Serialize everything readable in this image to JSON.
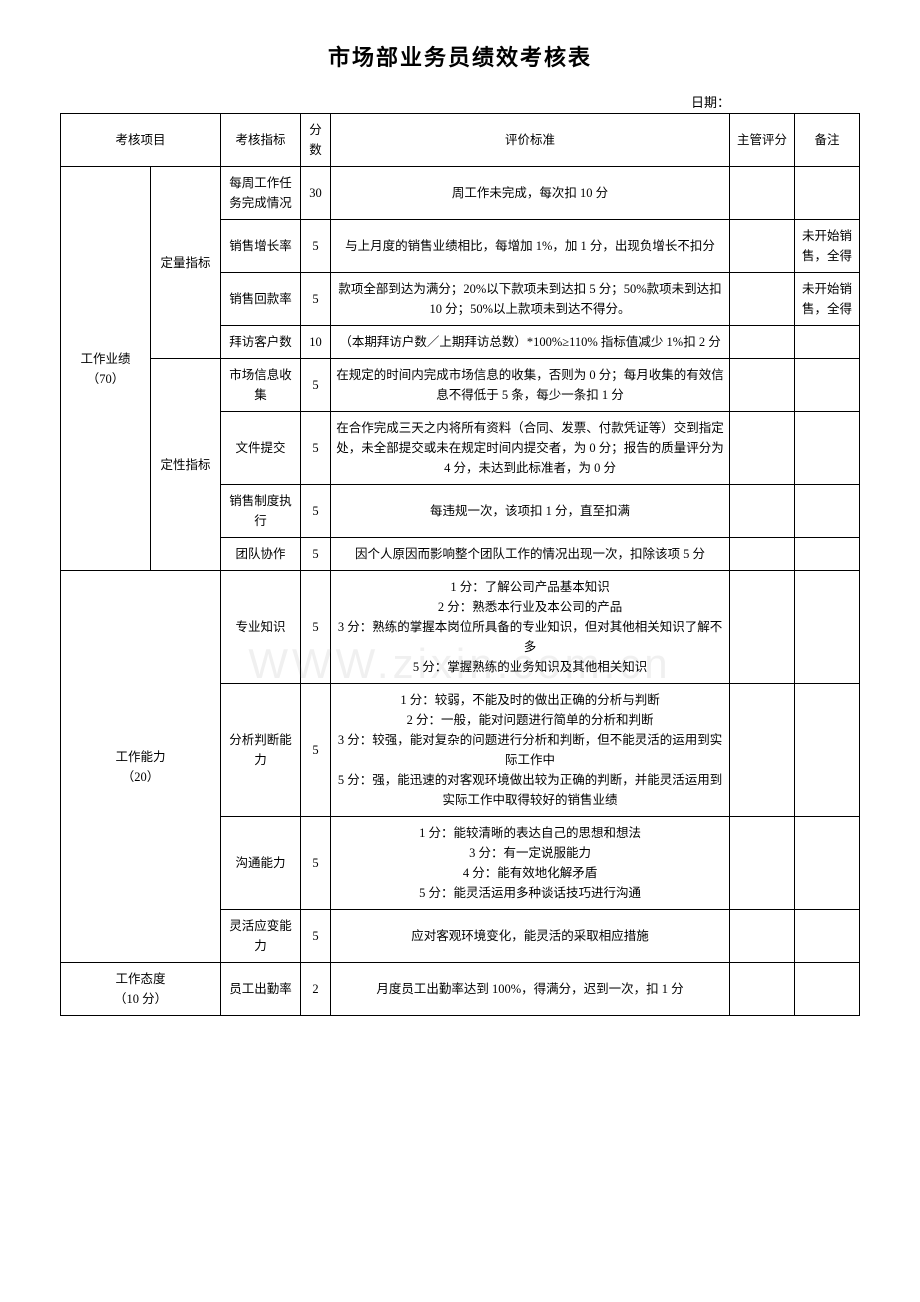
{
  "title": "市场部业务员绩效考核表",
  "date_label": "日期：",
  "headers": {
    "project": "考核项目",
    "indicator": "考核指标",
    "score": "分数",
    "criteria": "评价标准",
    "supervisor": "主管评分",
    "remark": "备注"
  },
  "sections": {
    "performance": {
      "label": "工作业绩",
      "weight": "（70）"
    },
    "ability": {
      "label": "工作能力",
      "weight": "（20）"
    },
    "attitude": {
      "label": "工作态度",
      "weight": "（10 分）"
    }
  },
  "subcats": {
    "quantitative": "定量指标",
    "qualitative": "定性指标"
  },
  "rows": [
    {
      "indicator": "每周工作任务完成情况",
      "score": "30",
      "criteria": "周工作未完成，每次扣 10 分",
      "remark": ""
    },
    {
      "indicator": "销售增长率",
      "score": "5",
      "criteria": "与上月度的销售业绩相比，每增加 1%，加 1 分，出现负增长不扣分",
      "remark": "未开始销售，全得"
    },
    {
      "indicator": "销售回款率",
      "score": "5",
      "criteria": "款项全部到达为满分；20%以下款项未到达扣 5 分；50%款项未到达扣 10 分；50%以上款项未到达不得分。",
      "remark": "未开始销售，全得"
    },
    {
      "indicator": "拜访客户数",
      "score": "10",
      "criteria": "（本期拜访户数／上期拜访总数）*100%≥110% 指标值减少 1%扣 2 分",
      "remark": ""
    },
    {
      "indicator": "市场信息收集",
      "score": "5",
      "criteria": "在规定的时间内完成市场信息的收集，否则为 0 分；每月收集的有效信息不得低于 5 条，每少一条扣 1 分",
      "remark": ""
    },
    {
      "indicator": "文件提交",
      "score": "5",
      "criteria": "在合作完成三天之内将所有资料（合同、发票、付款凭证等）交到指定处，未全部提交或未在规定时间内提交者，为 0 分；报告的质量评分为 4 分，未达到此标准者，为 0 分",
      "remark": ""
    },
    {
      "indicator": "销售制度执行",
      "score": "5",
      "criteria": "每违规一次，该项扣 1 分，直至扣满",
      "remark": ""
    },
    {
      "indicator": "团队协作",
      "score": "5",
      "criteria": "因个人原因而影响整个团队工作的情况出现一次，扣除该项 5 分",
      "remark": ""
    },
    {
      "indicator": "专业知识",
      "score": "5",
      "criteria": "1 分：了解公司产品基本知识\n2 分：熟悉本行业及本公司的产品\n3 分：熟练的掌握本岗位所具备的专业知识，但对其他相关知识了解不多\n5 分：掌握熟练的业务知识及其他相关知识",
      "remark": ""
    },
    {
      "indicator": "分析判断能力",
      "score": "5",
      "criteria": "1 分：较弱，不能及时的做出正确的分析与判断\n2 分：一般，能对问题进行简单的分析和判断\n3 分：较强，能对复杂的问题进行分析和判断，但不能灵活的运用到实际工作中\n5 分：强，能迅速的对客观环境做出较为正确的判断，并能灵活运用到实际工作中取得较好的销售业绩",
      "remark": ""
    },
    {
      "indicator": "沟通能力",
      "score": "5",
      "criteria": "1 分：能较清晰的表达自己的思想和想法\n3 分：有一定说服能力\n4 分：能有效地化解矛盾\n5 分：能灵活运用多种谈话技巧进行沟通",
      "remark": ""
    },
    {
      "indicator": "灵活应变能力",
      "score": "5",
      "criteria": "应对客观环境变化，能灵活的采取相应措施",
      "remark": ""
    },
    {
      "indicator": "员工出勤率",
      "score": "2",
      "criteria": "月度员工出勤率达到 100%，得满分，迟到一次，扣 1 分",
      "remark": ""
    }
  ],
  "watermark": "WWW.zixin.com.cn",
  "colors": {
    "text": "#000000",
    "border": "#000000",
    "background": "#ffffff"
  },
  "font_family": "SimSun",
  "base_font_size_pt": 10
}
